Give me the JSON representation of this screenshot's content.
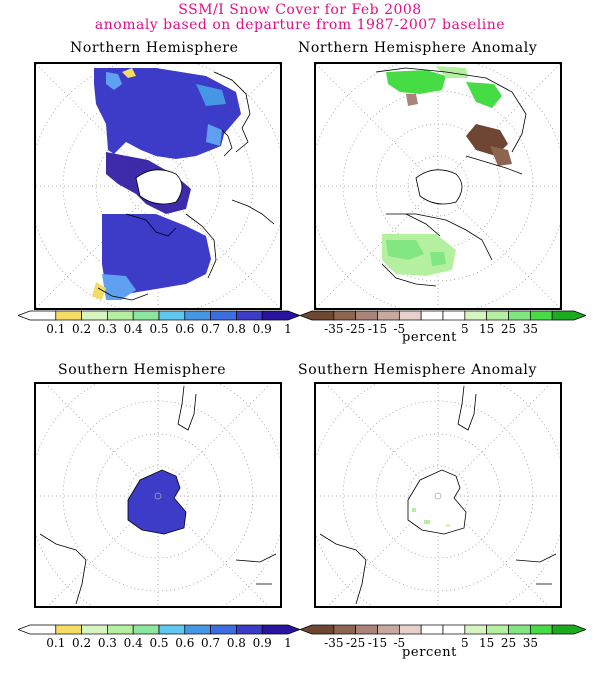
{
  "header": {
    "title": "SSM/I Snow Cover for Feb 2008",
    "subtitle": "anomaly based on departure from 1987-2007 baseline"
  },
  "panels": {
    "nh": {
      "title": "Northern Hemisphere"
    },
    "nh_anom": {
      "title": "Northern Hemisphere Anomaly"
    },
    "sh": {
      "title": "Southern Hemisphere"
    },
    "sh_anom": {
      "title": "Southern Hemisphere Anomaly"
    }
  },
  "cover_scale": {
    "ticks": [
      "0.1",
      "0.2",
      "0.3",
      "0.4",
      "0.5",
      "0.6",
      "0.7",
      "0.8",
      "0.9",
      "1"
    ],
    "colors": [
      "#ffffff",
      "#f5dc64",
      "#d7f5c0",
      "#b4f0a0",
      "#8ce6a0",
      "#5fc8f0",
      "#4696e6",
      "#3c6ee1",
      "#3c3cc8",
      "#2814a0"
    ]
  },
  "anomaly_scale": {
    "ticks": [
      "-35",
      "-25",
      "-15",
      "-5",
      "5",
      "15",
      "25",
      "35"
    ],
    "unit": "percent",
    "colors": [
      "#6e4632",
      "#8c6450",
      "#aa8478",
      "#c8aaa0",
      "#e6d2ca",
      "#ffffff",
      "#ffffff",
      "#d7f5c0",
      "#b4f0a0",
      "#82e682",
      "#46dc46",
      "#1eaa1e"
    ]
  },
  "colors": {
    "title": "#e0108a",
    "snow": "#3c3cc8",
    "snow_dark": "#2814a0",
    "snow_light": "#5fa0f0",
    "positive_anomaly": "#46dc46",
    "negative_anomaly": "#8c6450"
  }
}
